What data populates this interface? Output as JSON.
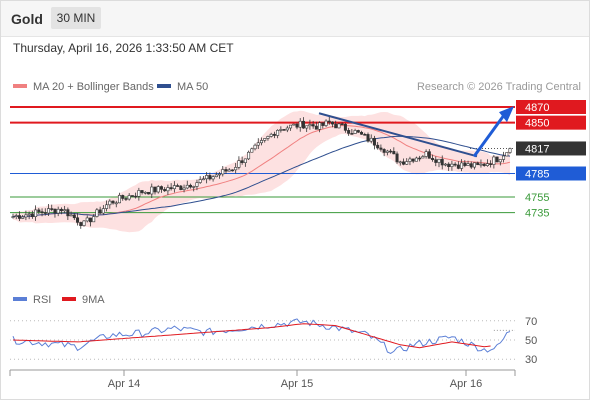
{
  "header": {
    "symbol": "Gold",
    "timeframe": "30 MIN"
  },
  "timestamp": "Thursday, April 16, 2026 1:33:50 AM CET",
  "credit": "Research © 2026 Trading Central",
  "colors": {
    "red": "#e0191f",
    "blue": "#1f5cd6",
    "green": "#3a9a3a",
    "ma20": "#f08080",
    "ma50": "#2f4f8f",
    "band": "#fde1e1",
    "candle": "#333333",
    "rsi": "#5b7fd6",
    "rsi_ma": "#e0191f",
    "dark_label": "#333333"
  },
  "chart_data": [
    {
      "type": "candlestick",
      "legend": [
        {
          "label": "MA 20 + Bollinger Bands",
          "color": "#f08080"
        },
        {
          "label": "MA 50",
          "color": "#2f4f8f"
        }
      ],
      "x_ticks": [
        "Apr 14",
        "Apr 15",
        "Apr 16"
      ],
      "price_range": [
        4630,
        4890
      ],
      "current_price": 4817,
      "levels": [
        {
          "label": "4870",
          "value": 4870,
          "kind": "resistance",
          "color": "#e0191f"
        },
        {
          "label": "4850",
          "value": 4850,
          "kind": "resistance",
          "color": "#e0191f"
        },
        {
          "label": "4817",
          "value": 4817,
          "kind": "current",
          "color": "#333333"
        },
        {
          "label": "4785",
          "value": 4785,
          "kind": "pivot",
          "color": "#1f5cd6"
        },
        {
          "label": "4755",
          "value": 4755,
          "kind": "support",
          "color": "#3a9a3a"
        },
        {
          "label": "4735",
          "value": 4735,
          "kind": "support",
          "color": "#3a9a3a"
        }
      ],
      "key_points": [
        {
          "x": 0,
          "y": 4730
        },
        {
          "x": 15,
          "y": 4740
        },
        {
          "x": 22,
          "y": 4720
        },
        {
          "x": 30,
          "y": 4748
        },
        {
          "x": 40,
          "y": 4762
        },
        {
          "x": 52,
          "y": 4768
        },
        {
          "x": 60,
          "y": 4778
        },
        {
          "x": 68,
          "y": 4792
        },
        {
          "x": 76,
          "y": 4820
        },
        {
          "x": 82,
          "y": 4842
        },
        {
          "x": 90,
          "y": 4848
        },
        {
          "x": 95,
          "y": 4845
        },
        {
          "x": 98,
          "y": 4850
        },
        {
          "x": 106,
          "y": 4838
        },
        {
          "x": 114,
          "y": 4820
        },
        {
          "x": 120,
          "y": 4800
        },
        {
          "x": 128,
          "y": 4810
        },
        {
          "x": 134,
          "y": 4798
        },
        {
          "x": 144,
          "y": 4794
        },
        {
          "x": 150,
          "y": 4804
        },
        {
          "x": 154,
          "y": 4817
        }
      ],
      "trendline": {
        "from": 4862,
        "to": 4807
      },
      "projection": {
        "from": 4817,
        "to": 4866
      }
    },
    {
      "type": "line",
      "legend": [
        {
          "label": "RSI",
          "color": "#5b7fd6"
        },
        {
          "label": "9MA",
          "color": "#e0191f"
        }
      ],
      "y_ticks": [
        70,
        50,
        30
      ],
      "ylim": [
        20,
        80
      ],
      "rsi_key_points": [
        {
          "x": 0,
          "y": 50
        },
        {
          "x": 10,
          "y": 47
        },
        {
          "x": 20,
          "y": 43
        },
        {
          "x": 30,
          "y": 55
        },
        {
          "x": 40,
          "y": 57
        },
        {
          "x": 50,
          "y": 62
        },
        {
          "x": 60,
          "y": 58
        },
        {
          "x": 70,
          "y": 62
        },
        {
          "x": 80,
          "y": 66
        },
        {
          "x": 90,
          "y": 69
        },
        {
          "x": 100,
          "y": 63
        },
        {
          "x": 110,
          "y": 55
        },
        {
          "x": 118,
          "y": 37
        },
        {
          "x": 124,
          "y": 45
        },
        {
          "x": 130,
          "y": 49
        },
        {
          "x": 136,
          "y": 53
        },
        {
          "x": 146,
          "y": 40
        },
        {
          "x": 150,
          "y": 42
        },
        {
          "x": 154,
          "y": 60
        }
      ],
      "ma_key_points": [
        {
          "x": 0,
          "y": 50
        },
        {
          "x": 20,
          "y": 48
        },
        {
          "x": 40,
          "y": 53
        },
        {
          "x": 60,
          "y": 58
        },
        {
          "x": 80,
          "y": 63
        },
        {
          "x": 90,
          "y": 67
        },
        {
          "x": 100,
          "y": 65
        },
        {
          "x": 110,
          "y": 55
        },
        {
          "x": 120,
          "y": 45
        },
        {
          "x": 126,
          "y": 42
        },
        {
          "x": 136,
          "y": 48
        },
        {
          "x": 146,
          "y": 43
        },
        {
          "x": 154,
          "y": 46
        }
      ]
    }
  ]
}
